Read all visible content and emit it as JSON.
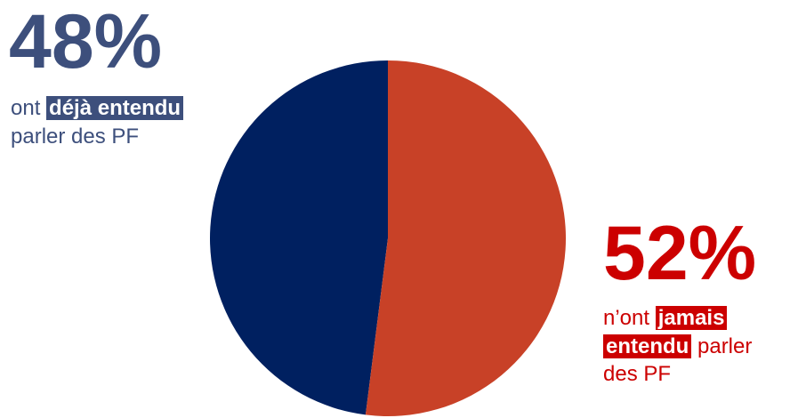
{
  "chart_data": {
    "type": "pie",
    "slices": [
      {
        "label": "ont déjà entendu parler des PF",
        "value": 48,
        "color": "#002060"
      },
      {
        "label": "n’ont jamais entendu parler des PF",
        "value": 52,
        "color": "#c84127"
      }
    ]
  },
  "annotations": {
    "left": {
      "percent": "48%",
      "prefix": "ont ",
      "highlight": "déjà entendu",
      "suffix": " parler des PF"
    },
    "right": {
      "percent": "52%",
      "prefix": "n’ont ",
      "highlight_1": "jamais",
      "highlight_2": "entendu",
      "suffix": " parler des PF"
    }
  },
  "colors": {
    "slice_heard": "#002060",
    "slice_never": "#c84127",
    "label_heard": "#3d4f7c",
    "label_never": "#cc0000"
  }
}
